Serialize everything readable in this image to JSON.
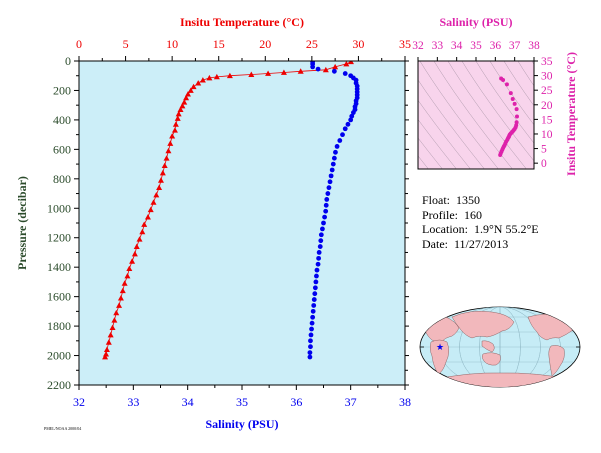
{
  "colors": {
    "temperature": "#ee0000",
    "salinity": "#0000ee",
    "inset": "#dd22aa",
    "axis_green": "#2b4b2b",
    "panel_bg": "#cceef8",
    "inset_bg": "#f8d4ec",
    "land": "#f2b8bc",
    "ocean": "#c6ecf6"
  },
  "float_info": {
    "float_label": "Float:",
    "float_value": "1350",
    "profile_label": "Profile:",
    "profile_value": "160",
    "location_label": "Location:",
    "location_value": "1.9°N  55.2°E",
    "date_label": "Date:",
    "date_value": "11/27/2013"
  },
  "footer_note": "PMEL/NOAA 2000/04",
  "chart_data": [
    {
      "type": "scatter",
      "name": "main-profile",
      "title_top": "Insitu Temperature (°C)",
      "xlabel": "Salinity (PSU)",
      "ylabel": "Pressure (decibar)",
      "x_top_lim": [
        0,
        35
      ],
      "x_top_ticks": [
        0,
        5,
        10,
        15,
        20,
        25,
        30,
        35
      ],
      "x_bottom_lim": [
        32,
        38
      ],
      "x_bottom_ticks": [
        32,
        33,
        34,
        35,
        36,
        37,
        38
      ],
      "ylim": [
        0,
        2200
      ],
      "y_ticks": [
        0,
        200,
        400,
        600,
        800,
        1000,
        1200,
        1400,
        1600,
        1800,
        2000,
        2200
      ],
      "y_inverted": true,
      "series": [
        {
          "kind": "temperature",
          "marker": "triangle",
          "axis": "top",
          "points": [
            [
              29.2,
              5
            ],
            [
              28.7,
              20
            ],
            [
              27.5,
              40
            ],
            [
              26.5,
              60
            ],
            [
              23.8,
              70
            ],
            [
              22.0,
              78
            ],
            [
              20.3,
              85
            ],
            [
              18.5,
              92
            ],
            [
              16.2,
              100
            ],
            [
              14.8,
              108
            ],
            [
              14.0,
              115
            ],
            [
              13.3,
              130
            ],
            [
              12.8,
              150
            ],
            [
              12.3,
              175
            ],
            [
              12.0,
              200
            ],
            [
              11.7,
              225
            ],
            [
              11.5,
              250
            ],
            [
              11.3,
              280
            ],
            [
              11.1,
              305
            ],
            [
              10.9,
              330
            ],
            [
              10.7,
              360
            ],
            [
              10.6,
              390
            ],
            [
              10.4,
              430
            ],
            [
              10.3,
              470
            ],
            [
              10.0,
              510
            ],
            [
              9.8,
              560
            ],
            [
              9.6,
              610
            ],
            [
              9.4,
              660
            ],
            [
              9.2,
              710
            ],
            [
              9.0,
              760
            ],
            [
              8.8,
              810
            ],
            [
              8.6,
              860
            ],
            [
              8.3,
              910
            ],
            [
              8.0,
              960
            ],
            [
              7.7,
              1010
            ],
            [
              7.4,
              1060
            ],
            [
              7.0,
              1110
            ],
            [
              6.8,
              1160
            ],
            [
              6.5,
              1210
            ],
            [
              6.2,
              1260
            ],
            [
              6.0,
              1310
            ],
            [
              5.7,
              1360
            ],
            [
              5.4,
              1410
            ],
            [
              5.2,
              1460
            ],
            [
              4.9,
              1510
            ],
            [
              4.7,
              1560
            ],
            [
              4.5,
              1610
            ],
            [
              4.3,
              1660
            ],
            [
              4.0,
              1710
            ],
            [
              3.8,
              1760
            ],
            [
              3.6,
              1810
            ],
            [
              3.4,
              1860
            ],
            [
              3.2,
              1910
            ],
            [
              3.0,
              1960
            ],
            [
              2.9,
              1990
            ],
            [
              2.8,
              2010
            ]
          ]
        },
        {
          "kind": "salinity",
          "marker": "circle",
          "axis": "bottom",
          "points": [
            [
              36.3,
              5
            ],
            [
              36.3,
              20
            ],
            [
              36.3,
              40
            ],
            [
              36.4,
              55
            ],
            [
              36.7,
              70
            ],
            [
              36.9,
              85
            ],
            [
              37.0,
              100
            ],
            [
              37.05,
              115
            ],
            [
              37.1,
              130
            ],
            [
              37.1,
              150
            ],
            [
              37.12,
              170
            ],
            [
              37.12,
              190
            ],
            [
              37.12,
              210
            ],
            [
              37.12,
              230
            ],
            [
              37.12,
              250
            ],
            [
              37.1,
              270
            ],
            [
              37.1,
              290
            ],
            [
              37.08,
              310
            ],
            [
              37.08,
              330
            ],
            [
              37.05,
              350
            ],
            [
              37.02,
              375
            ],
            [
              37.0,
              400
            ],
            [
              36.95,
              430
            ],
            [
              36.9,
              460
            ],
            [
              36.85,
              500
            ],
            [
              36.8,
              540
            ],
            [
              36.75,
              580
            ],
            [
              36.72,
              620
            ],
            [
              36.7,
              660
            ],
            [
              36.68,
              700
            ],
            [
              36.66,
              740
            ],
            [
              36.64,
              780
            ],
            [
              36.62,
              820
            ],
            [
              36.6,
              860
            ],
            [
              36.58,
              900
            ],
            [
              36.56,
              940
            ],
            [
              36.55,
              980
            ],
            [
              36.54,
              1020
            ],
            [
              36.52,
              1060
            ],
            [
              36.5,
              1100
            ],
            [
              36.48,
              1140
            ],
            [
              36.46,
              1180
            ],
            [
              36.45,
              1220
            ],
            [
              36.44,
              1260
            ],
            [
              36.42,
              1300
            ],
            [
              36.41,
              1340
            ],
            [
              36.4,
              1380
            ],
            [
              36.38,
              1420
            ],
            [
              36.37,
              1460
            ],
            [
              36.36,
              1500
            ],
            [
              36.35,
              1540
            ],
            [
              36.34,
              1580
            ],
            [
              36.33,
              1620
            ],
            [
              36.32,
              1660
            ],
            [
              36.31,
              1700
            ],
            [
              36.3,
              1740
            ],
            [
              36.29,
              1780
            ],
            [
              36.28,
              1820
            ],
            [
              36.27,
              1860
            ],
            [
              36.26,
              1900
            ],
            [
              36.26,
              1940
            ],
            [
              36.25,
              1980
            ],
            [
              36.25,
              2010
            ]
          ]
        }
      ]
    },
    {
      "type": "scatter",
      "name": "ts-inset",
      "xlabel_top": "Salinity (PSU)",
      "ylabel_right": "Insitu Temperature (°C)",
      "xlim": [
        32,
        38
      ],
      "x_ticks": [
        32,
        33,
        34,
        35,
        36,
        37,
        38
      ],
      "ylim": [
        -2,
        35
      ],
      "y_ticks": [
        0,
        5,
        10,
        15,
        20,
        25,
        30,
        35
      ],
      "points": [
        [
          36.3,
          29.0
        ],
        [
          36.4,
          28.5
        ],
        [
          36.6,
          27.0
        ],
        [
          36.8,
          24.0
        ],
        [
          36.9,
          22.0
        ],
        [
          37.0,
          20.3
        ],
        [
          37.1,
          18.5
        ],
        [
          37.12,
          16.0
        ],
        [
          37.1,
          14.0
        ],
        [
          37.08,
          13.0
        ],
        [
          37.05,
          12.3
        ],
        [
          37.0,
          11.7
        ],
        [
          36.95,
          11.3
        ],
        [
          36.9,
          10.9
        ],
        [
          36.85,
          10.5
        ],
        [
          36.8,
          10.2
        ],
        [
          36.75,
          9.8
        ],
        [
          36.72,
          9.4
        ],
        [
          36.7,
          9.0
        ],
        [
          36.66,
          8.6
        ],
        [
          36.62,
          8.0
        ],
        [
          36.56,
          7.4
        ],
        [
          36.52,
          6.8
        ],
        [
          36.48,
          6.2
        ],
        [
          36.44,
          5.7
        ],
        [
          36.4,
          5.2
        ],
        [
          36.36,
          4.6
        ],
        [
          36.32,
          4.0
        ],
        [
          36.28,
          3.4
        ],
        [
          36.25,
          2.8
        ]
      ]
    }
  ],
  "map": {
    "float_marker": "star"
  }
}
